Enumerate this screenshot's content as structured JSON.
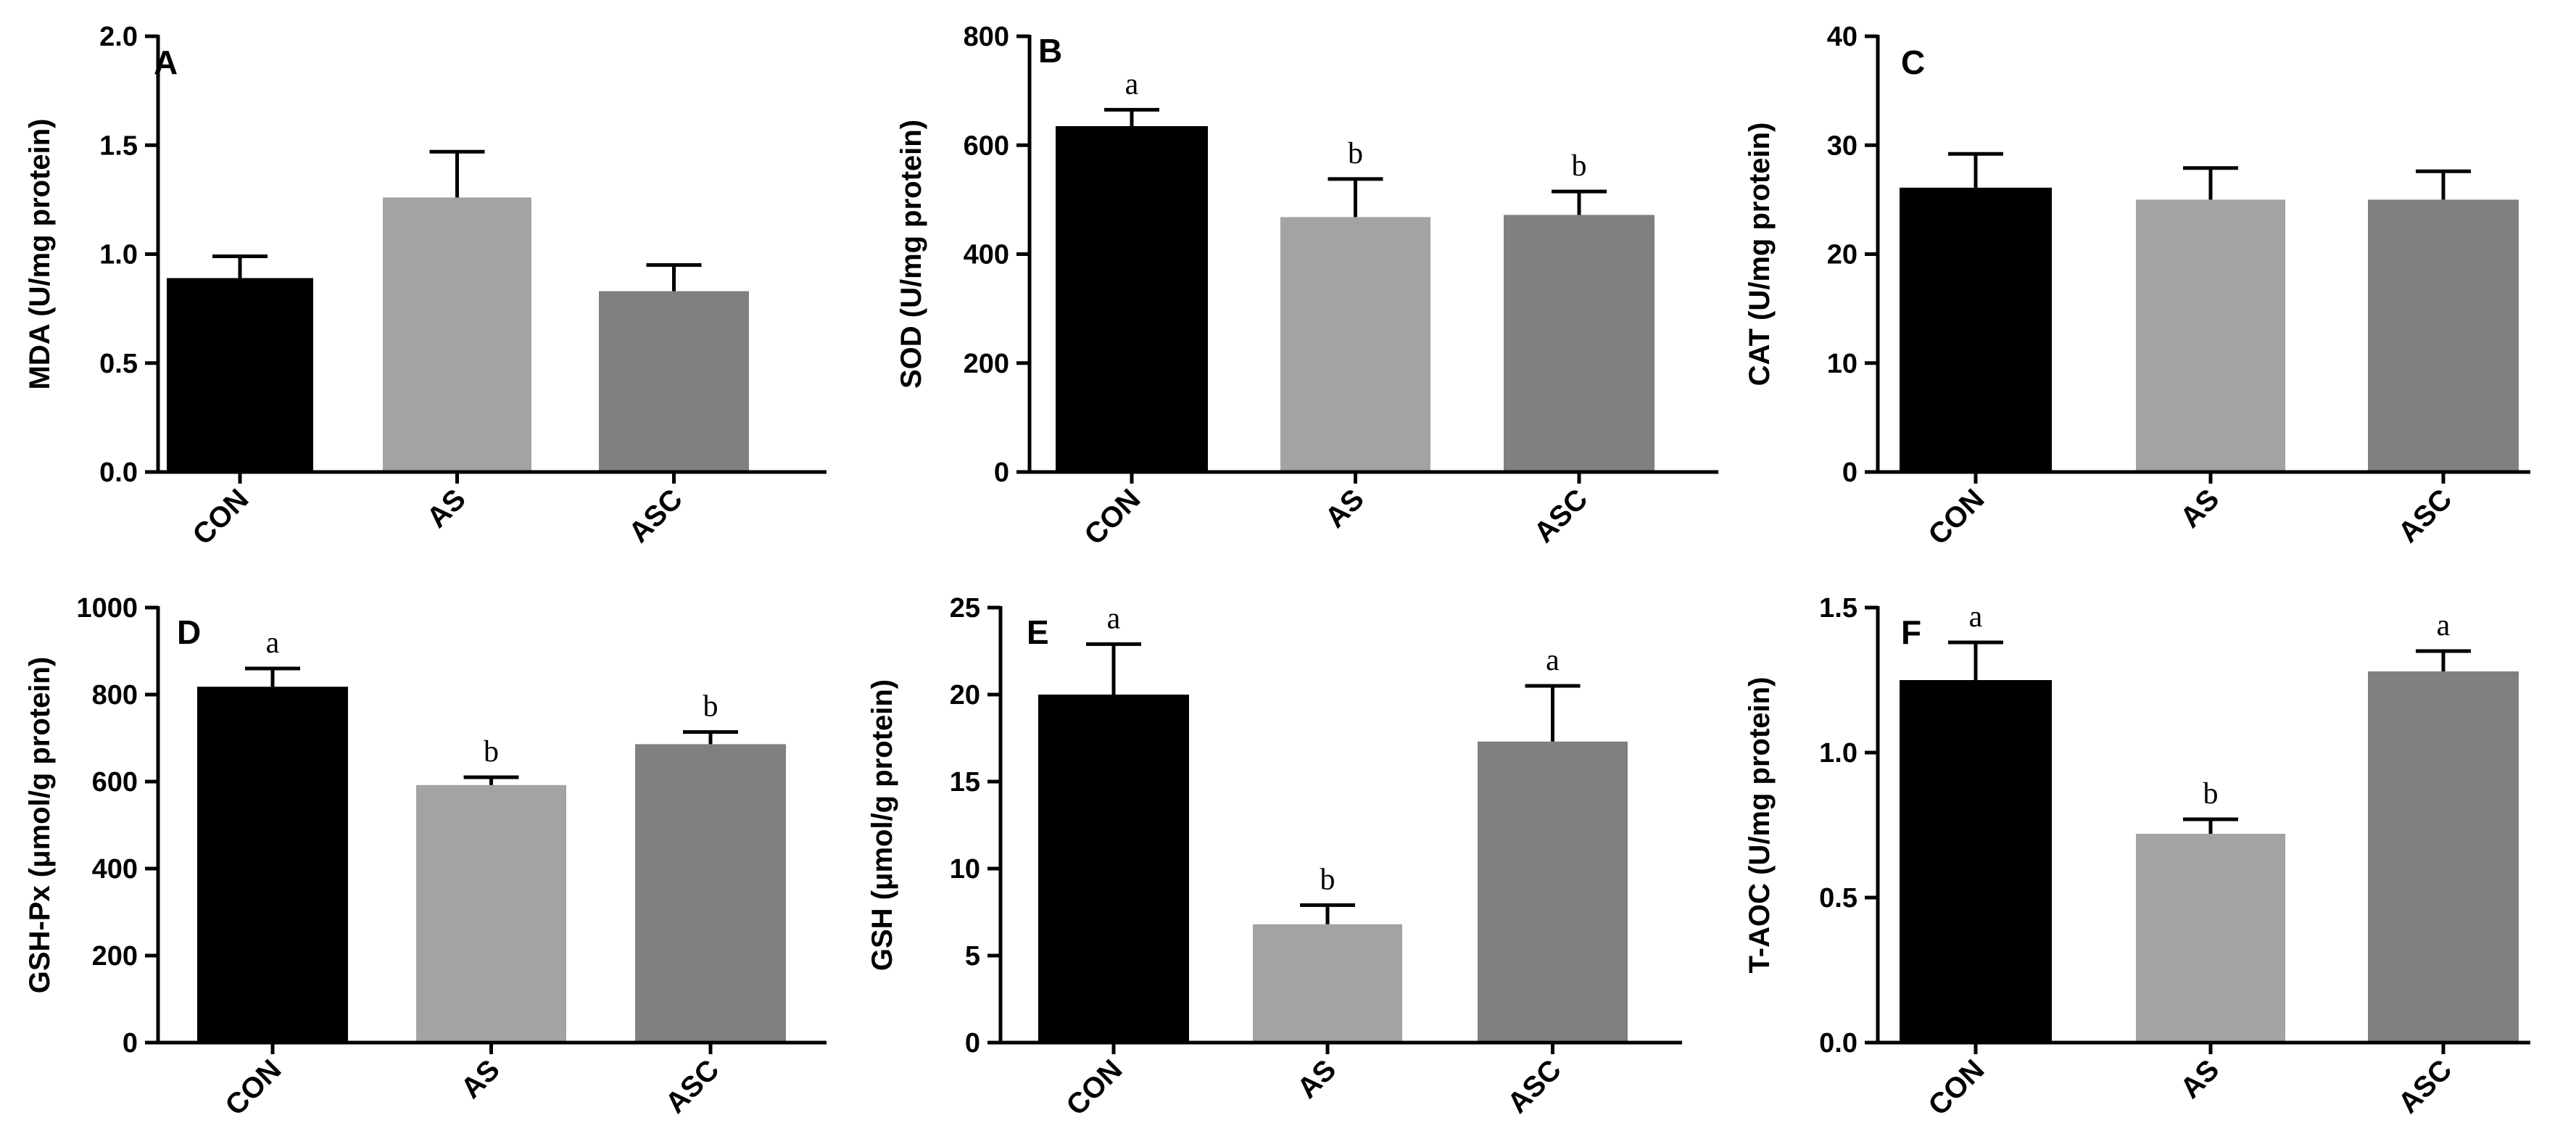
{
  "chart_data": [
    {
      "type": "bar",
      "panel": "A",
      "ylabel": "MDA (U/mg protein)",
      "categories": [
        "CON",
        "AS",
        "ASC"
      ],
      "values": [
        0.89,
        1.26,
        0.83
      ],
      "errors": [
        0.1,
        0.21,
        0.12
      ],
      "ylim": [
        0,
        2.0
      ],
      "yticks": [
        "0.0",
        "0.5",
        "1.0",
        "1.5",
        "2.0"
      ],
      "significance": [
        "",
        "",
        ""
      ],
      "colors": [
        "#000000",
        "#a3a3a3",
        "#808080"
      ]
    },
    {
      "type": "bar",
      "panel": "B",
      "ylabel": "SOD (U/mg protein)",
      "categories": [
        "CON",
        "AS",
        "ASC"
      ],
      "values": [
        635,
        468,
        472
      ],
      "errors": [
        30,
        70,
        43
      ],
      "ylim": [
        0,
        800
      ],
      "yticks": [
        "0",
        "200",
        "400",
        "600",
        "800"
      ],
      "significance": [
        "a",
        "b",
        "b"
      ],
      "colors": [
        "#000000",
        "#a3a3a3",
        "#808080"
      ]
    },
    {
      "type": "bar",
      "panel": "C",
      "ylabel": "CAT (U/mg protein)",
      "categories": [
        "CON",
        "AS",
        "ASC"
      ],
      "values": [
        26.1,
        25.0,
        25.0
      ],
      "errors": [
        3.1,
        2.9,
        2.6
      ],
      "ylim": [
        0,
        40
      ],
      "yticks": [
        "0",
        "10",
        "20",
        "30",
        "40"
      ],
      "significance": [
        "",
        "",
        ""
      ],
      "colors": [
        "#000000",
        "#a3a3a3",
        "#808080"
      ]
    },
    {
      "type": "bar",
      "panel": "D",
      "ylabel": "GSH-Px (μmol/g protein)",
      "categories": [
        "CON",
        "AS",
        "ASC"
      ],
      "values": [
        818,
        592,
        686
      ],
      "errors": [
        42,
        18,
        28
      ],
      "ylim": [
        0,
        1000
      ],
      "yticks": [
        "0",
        "200",
        "400",
        "600",
        "800",
        "1000"
      ],
      "significance": [
        "a",
        "b",
        "b"
      ],
      "colors": [
        "#000000",
        "#a3a3a3",
        "#808080"
      ]
    },
    {
      "type": "bar",
      "panel": "E",
      "ylabel": "GSH (μmol/g protein)",
      "categories": [
        "CON",
        "AS",
        "ASC"
      ],
      "values": [
        20.0,
        6.8,
        17.3
      ],
      "errors": [
        2.9,
        1.1,
        3.2
      ],
      "ylim": [
        0,
        25
      ],
      "yticks": [
        "0",
        "5",
        "10",
        "15",
        "20",
        "25"
      ],
      "significance": [
        "a",
        "b",
        "a"
      ],
      "colors": [
        "#000000",
        "#a3a3a3",
        "#808080"
      ]
    },
    {
      "type": "bar",
      "panel": "F",
      "ylabel": "T-AOC (U/mg protein)",
      "categories": [
        "CON",
        "AS",
        "ASC"
      ],
      "values": [
        1.25,
        0.72,
        1.28
      ],
      "errors": [
        0.13,
        0.05,
        0.07
      ],
      "ylim": [
        0,
        1.5
      ],
      "yticks": [
        "0.0",
        "0.5",
        "1.0",
        "1.5"
      ],
      "significance": [
        "a",
        "b",
        "a"
      ],
      "colors": [
        "#000000",
        "#a3a3a3",
        "#808080"
      ]
    }
  ]
}
